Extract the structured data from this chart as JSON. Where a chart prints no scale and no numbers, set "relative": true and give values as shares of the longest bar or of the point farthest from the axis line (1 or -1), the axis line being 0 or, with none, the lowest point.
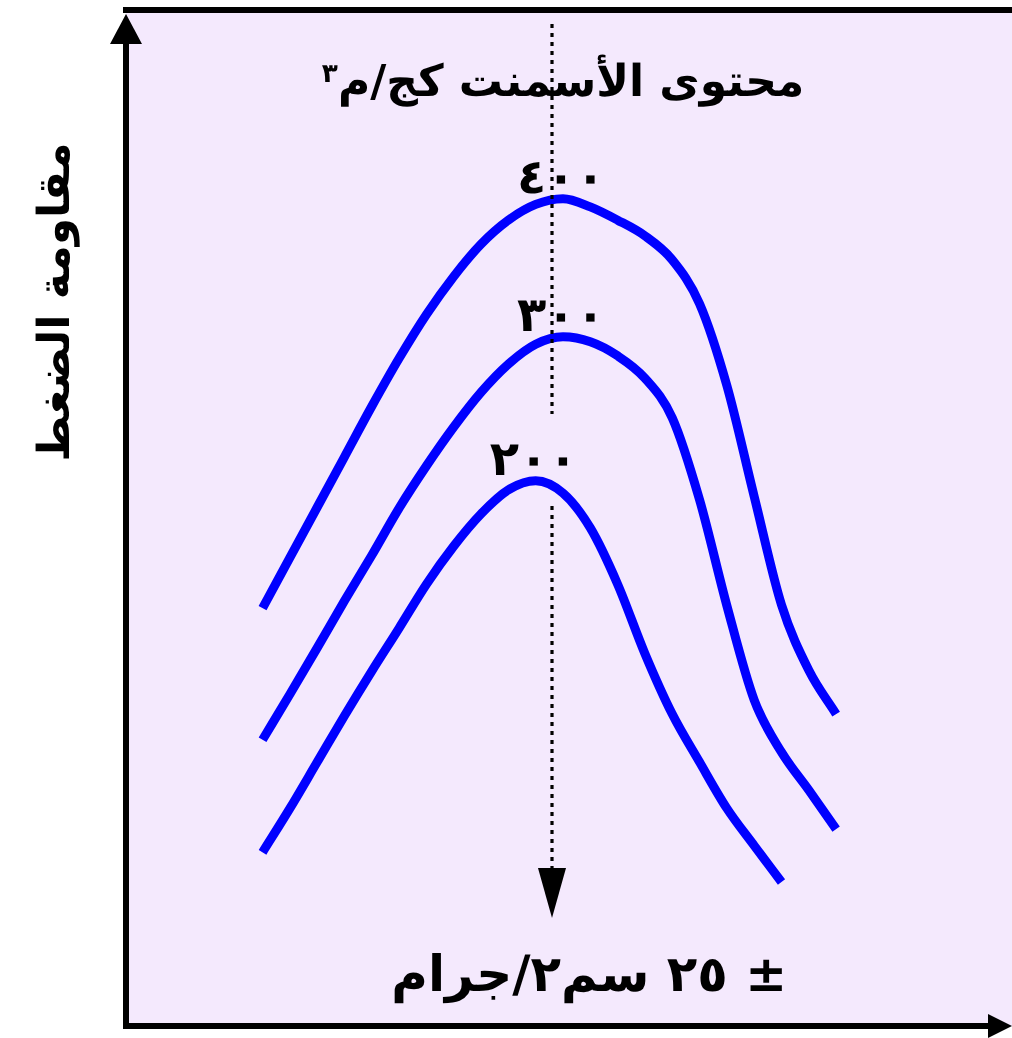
{
  "chart_data": {
    "type": "line",
    "title": "محتوى الأسمنت كج/م$^{٣}$",
    "ylabel": "مقاومة الضغط",
    "relative": true,
    "categories": [
      null,
      null,
      null,
      null,
      null,
      null,
      null,
      null,
      null,
      null,
      null,
      null,
      null,
      null,
      null,
      null,
      null,
      null,
      null,
      null,
      null,
      null,
      null,
      null,
      null,
      null,
      null,
      null,
      null,
      null,
      null,
      null,
      null
    ],
    "series": [
      {
        "name": "٤٠٠",
        "color": "#0000ff",
        "values": [
          null,
          null,
          null,
          null,
          null,
          0.505,
          0.566,
          0.627,
          0.688,
          0.749,
          0.807,
          0.86,
          0.906,
          0.945,
          0.974,
          0.993,
          1,
          0.99,
          0.974,
          0.955,
          0.926,
          0.873,
          0.774,
          0.64,
          0.509,
          0.43,
          0.377,
          null,
          null,
          null,
          null,
          null,
          null
        ]
      },
      {
        "name": "٣٠٠",
        "color": "#0000ff",
        "values": [
          null,
          null,
          null,
          null,
          null,
          0.346,
          0.401,
          0.457,
          0.514,
          0.569,
          0.626,
          0.677,
          0.724,
          0.766,
          0.8,
          0.824,
          0.833,
          0.827,
          0.81,
          0.783,
          0.735,
          0.636,
          0.508,
          0.394,
          0.331,
          0.285,
          0.238,
          null,
          null,
          null,
          null,
          null,
          null
        ]
      },
      {
        "name": "٢٠٠",
        "color": "#0000ff",
        "values": [
          null,
          null,
          null,
          null,
          null,
          0.21,
          0.263,
          0.319,
          0.375,
          0.429,
          0.481,
          0.534,
          0.58,
          0.619,
          0.648,
          0.659,
          0.644,
          0.602,
          0.534,
          0.45,
          0.377,
          0.319,
          0.263,
          0.218,
          0.174,
          null,
          null,
          null,
          null,
          null,
          null,
          null,
          null
        ]
      }
    ],
    "annotations": [
      "± ٢٥ سم٢/جرام"
    ]
  }
}
